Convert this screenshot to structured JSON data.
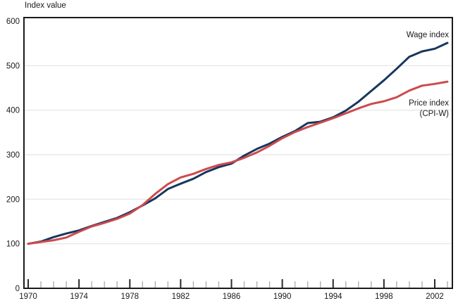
{
  "chart_data": {
    "type": "line",
    "ylabel": "Index value",
    "ylim": [
      0,
      600
    ],
    "yticks": [
      0,
      100,
      200,
      300,
      400,
      500,
      600
    ],
    "xtick_labels": [
      1970,
      1974,
      1978,
      1982,
      1986,
      1990,
      1994,
      1998,
      2002
    ],
    "grid": "horizontal",
    "legend_position": "inline-right",
    "years": [
      1970,
      1971,
      1972,
      1973,
      1974,
      1975,
      1976,
      1977,
      1978,
      1979,
      1980,
      1981,
      1982,
      1983,
      1984,
      1985,
      1986,
      1987,
      1988,
      1989,
      1990,
      1991,
      1992,
      1993,
      1994,
      1995,
      1996,
      1997,
      1998,
      1999,
      2000,
      2001,
      2002,
      2003
    ],
    "series": [
      {
        "name": "Wage index",
        "color": "#17365d",
        "values": [
          100,
          105,
          115,
          123,
          130,
          140,
          149,
          158,
          171,
          186,
          202,
          223,
          235,
          246,
          261,
          272,
          280,
          298,
          313,
          325,
          340,
          353,
          371,
          374,
          384,
          399,
          419,
          443,
          467,
          493,
          520,
          532,
          538,
          551
        ]
      },
      {
        "name": "Price index (CPI-W)",
        "color": "#cc4a4d",
        "values": [
          100,
          104,
          108,
          114,
          127,
          139,
          147,
          156,
          168,
          187,
          212,
          234,
          249,
          257,
          268,
          277,
          283,
          293,
          305,
          320,
          337,
          351,
          362,
          372,
          382,
          393,
          404,
          414,
          420,
          429,
          444,
          455,
          459,
          464
        ]
      }
    ],
    "annotations": [
      {
        "target": "Wage index",
        "lines": [
          "Wage index"
        ]
      },
      {
        "target": "Price index (CPI-W)",
        "lines": [
          "Price index",
          "(CPI-W)"
        ]
      }
    ],
    "colors": {
      "frame": "#1a1a1a",
      "grid": "#e3e3e3",
      "major_tick": "#2a2a2a",
      "minor_tick": "#b0b0b0",
      "text": "#1a1a1a"
    }
  }
}
